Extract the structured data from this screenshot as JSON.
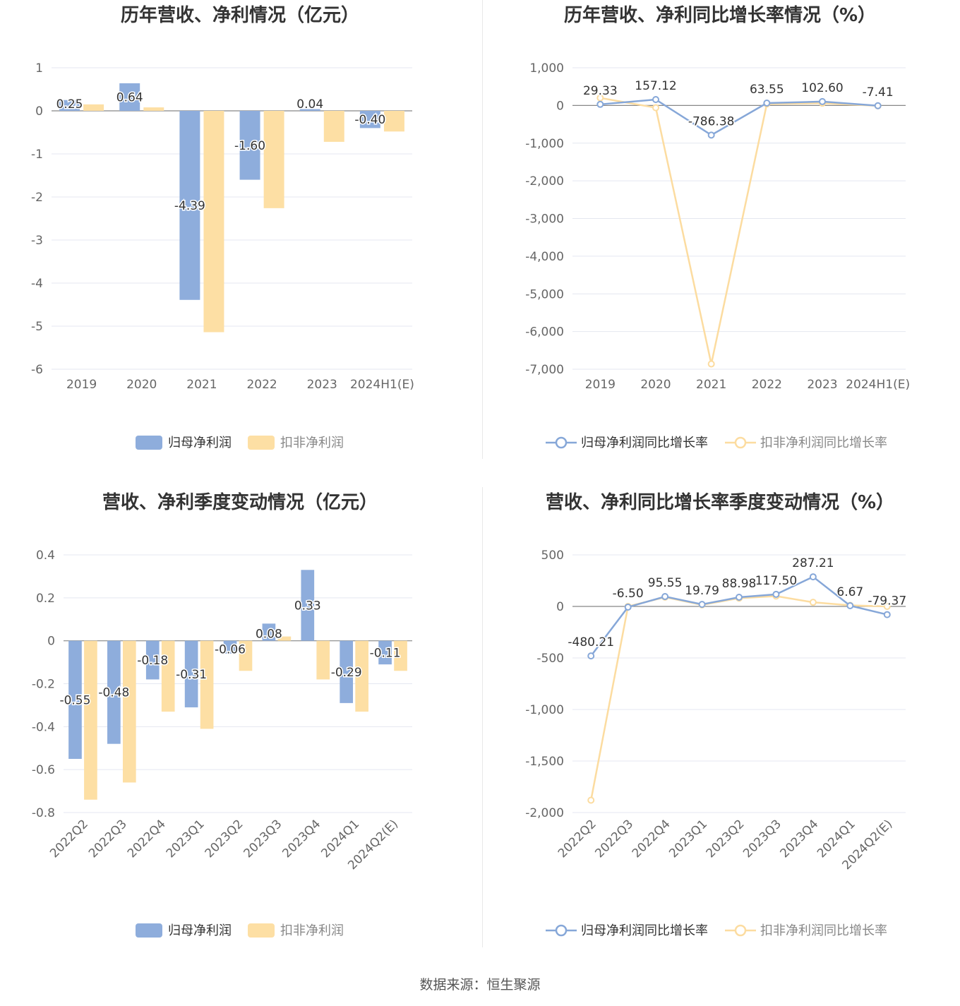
{
  "source": "数据来源：恒生聚源",
  "colors": {
    "series1": "#8eaddc",
    "series2": "#fddfa4",
    "series1_line": "#86a7d8",
    "series2_line": "#fcdca0",
    "grid": "#e4e7f0",
    "axis": "#666666"
  },
  "chart_data": [
    {
      "id": "annual-profit",
      "type": "bar",
      "title": "历年营收、净利情况（亿元）",
      "categories": [
        "2019",
        "2020",
        "2021",
        "2022",
        "2023",
        "2024H1(E)"
      ],
      "yticks": [
        "1",
        "0",
        "-1",
        "-2",
        "-3",
        "-4",
        "-5",
        "-6"
      ],
      "ylim": [
        -6,
        1
      ],
      "series": [
        {
          "name": "归母净利润",
          "values": [
            0.25,
            0.64,
            -4.39,
            -1.6,
            0.04,
            -0.4
          ],
          "labels": [
            "0.25",
            "0.64",
            "-4.39",
            "-1.60",
            "0.04",
            "-0.40"
          ]
        },
        {
          "name": "扣非净利润",
          "values": [
            0.15,
            0.08,
            -5.14,
            -2.26,
            -0.72,
            -0.48
          ]
        }
      ],
      "legend": "bottom"
    },
    {
      "id": "annual-growth",
      "type": "line",
      "title": "历年营收、净利同比增长率情况（%）",
      "categories": [
        "2019",
        "2020",
        "2021",
        "2022",
        "2023",
        "2024H1(E)"
      ],
      "yticks": [
        "1,000",
        "0",
        "-1,000",
        "-2,000",
        "-3,000",
        "-4,000",
        "-5,000",
        "-6,000",
        "-7,000"
      ],
      "ylim": [
        -7000,
        1000
      ],
      "series": [
        {
          "name": "归母净利润同比增长率",
          "values": [
            29.33,
            157.12,
            -786.38,
            63.55,
            102.6,
            -7.41
          ],
          "labels": [
            "29.33",
            "157.12",
            "-786.38",
            "63.55",
            "102.60",
            "-7.41"
          ]
        },
        {
          "name": "扣非净利润同比增长率",
          "values": [
            200,
            -60,
            -6860,
            40,
            60,
            -10
          ]
        }
      ],
      "legend": "bottom"
    },
    {
      "id": "quarterly-profit",
      "type": "bar",
      "title": "营收、净利季度变动情况（亿元）",
      "categories": [
        "2022Q2",
        "2022Q3",
        "2022Q4",
        "2023Q1",
        "2023Q2",
        "2023Q3",
        "2023Q4",
        "2024Q1",
        "2024Q2(E)"
      ],
      "yticks": [
        "0.4",
        "0.2",
        "0",
        "-0.2",
        "-0.4",
        "-0.6",
        "-0.8"
      ],
      "ylim": [
        -0.8,
        0.4
      ],
      "series": [
        {
          "name": "归母净利润",
          "values": [
            -0.55,
            -0.48,
            -0.18,
            -0.31,
            -0.06,
            0.08,
            0.33,
            -0.29,
            -0.11
          ],
          "labels": [
            "-0.55",
            "-0.48",
            "-0.18",
            "-0.31",
            "-0.06",
            "0.08",
            "0.33",
            "-0.29",
            "-0.11"
          ]
        },
        {
          "name": "扣非净利润",
          "values": [
            -0.74,
            -0.66,
            -0.33,
            -0.41,
            -0.14,
            0.02,
            -0.18,
            -0.33,
            -0.14
          ]
        }
      ],
      "legend": "bottom"
    },
    {
      "id": "quarterly-growth",
      "type": "line",
      "title": "营收、净利同比增长率季度变动情况（%）",
      "categories": [
        "2022Q2",
        "2022Q3",
        "2022Q4",
        "2023Q1",
        "2023Q2",
        "2023Q3",
        "2023Q4",
        "2024Q1",
        "2024Q2(E)"
      ],
      "yticks": [
        "500",
        "0",
        "-500",
        "-1,000",
        "-1,500",
        "-2,000"
      ],
      "ylim": [
        -2000,
        500
      ],
      "series": [
        {
          "name": "归母净利润同比增长率",
          "values": [
            -480.21,
            -6.5,
            95.55,
            19.79,
            88.98,
            117.5,
            287.21,
            6.67,
            -79.37
          ],
          "labels": [
            "-480.21",
            "-6.50",
            "95.55",
            "19.79",
            "88.98",
            "117.50",
            "287.21",
            "6.67",
            "-79.37"
          ]
        },
        {
          "name": "扣非净利润同比增长率",
          "values": [
            -1880,
            0,
            90,
            15,
            80,
            100,
            40,
            10,
            0
          ]
        }
      ],
      "legend": "bottom"
    }
  ]
}
